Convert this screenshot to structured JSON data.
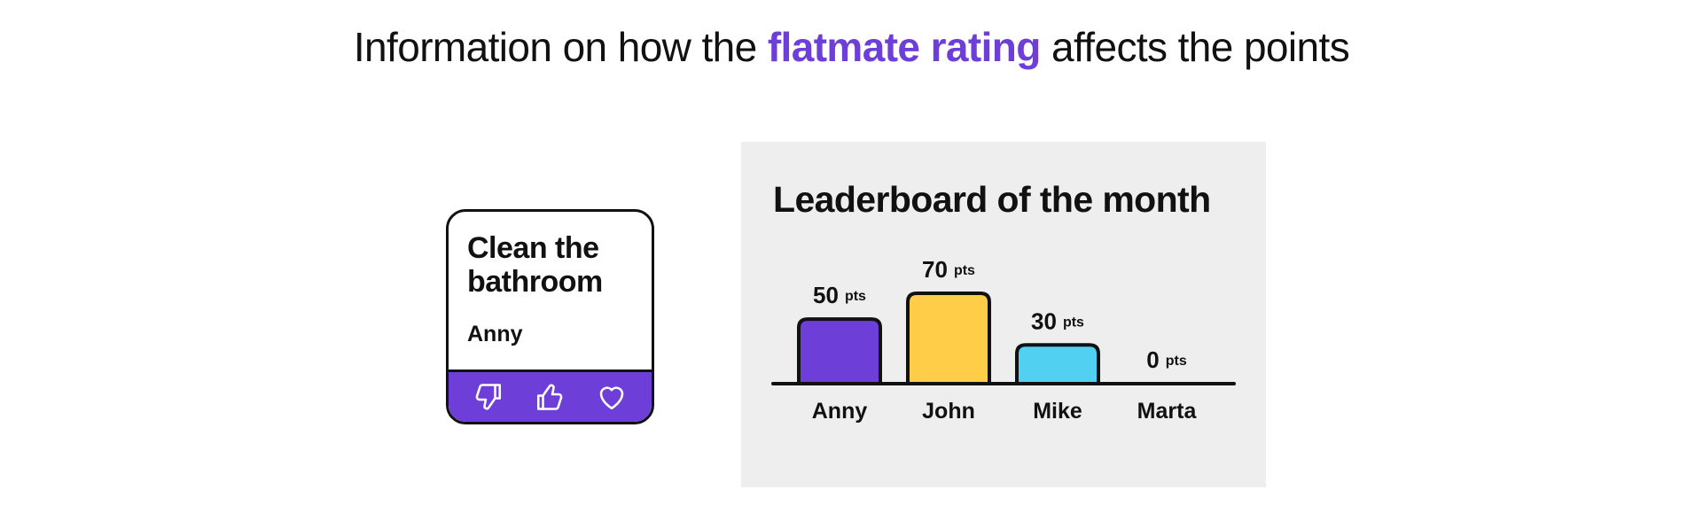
{
  "headline": {
    "prefix": "Information on how the",
    "highlight": "flatmate rating",
    "suffix": "affects the points"
  },
  "colors": {
    "accent": "#6E3FD8",
    "panel_bg": "#EEEEEE",
    "outline": "#111111"
  },
  "task_card": {
    "title": "Clean the bathroom",
    "assignee": "Anny",
    "actions": [
      {
        "icon": "thumbs-down-icon"
      },
      {
        "icon": "thumbs-up-icon"
      },
      {
        "icon": "heart-icon"
      }
    ]
  },
  "chart_data": {
    "type": "bar",
    "title": "Leaderboard of the month",
    "categories": [
      "Anny",
      "John",
      "Mike",
      "Marta"
    ],
    "values": [
      50,
      70,
      30,
      0
    ],
    "value_unit": "pts",
    "colors": [
      "#6E3FD8",
      "#FFCD48",
      "#52D0F1",
      "#6E3FD8"
    ],
    "ylim": [
      0,
      70
    ],
    "grid": false
  }
}
